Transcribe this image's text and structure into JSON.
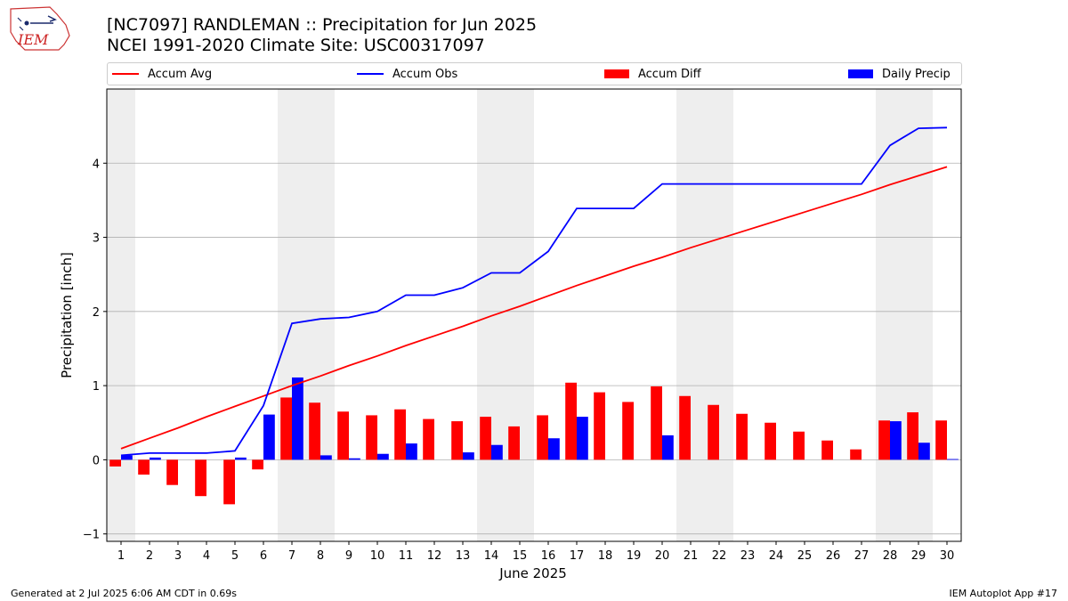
{
  "header": {
    "title": "[NC7097] RANDLEMAN :: Precipitation for Jun 2025",
    "subtitle": "NCEI 1991-2020 Climate Site: USC00317097",
    "logo_text": "IEM"
  },
  "legend": {
    "items": [
      {
        "label": "Accum Avg",
        "kind": "line",
        "color": "#ff0000"
      },
      {
        "label": "Accum Obs",
        "kind": "line",
        "color": "#0000ff"
      },
      {
        "label": "Accum Diff",
        "kind": "bar",
        "color": "#ff0000"
      },
      {
        "label": "Daily Precip",
        "kind": "bar",
        "color": "#0000ff"
      }
    ]
  },
  "footer": {
    "left": "Generated at 2 Jul 2025 6:06 AM CDT in 0.69s",
    "right": "IEM Autoplot App #17"
  },
  "chart_data": {
    "type": "bar",
    "xlabel": "June 2025",
    "ylabel": "Precipitation [inch]",
    "categories": [
      1,
      2,
      3,
      4,
      5,
      6,
      7,
      8,
      9,
      10,
      11,
      12,
      13,
      14,
      15,
      16,
      17,
      18,
      19,
      20,
      21,
      22,
      23,
      24,
      25,
      26,
      27,
      28,
      29,
      30
    ],
    "ylim": [
      -1.1,
      5.0
    ],
    "yticks": [
      -1,
      0,
      1,
      2,
      3,
      4
    ],
    "grid": true,
    "legend_position": "top",
    "weekend_shading": [
      [
        1,
        1
      ],
      [
        7,
        8
      ],
      [
        14,
        15
      ],
      [
        21,
        22
      ],
      [
        28,
        29
      ]
    ],
    "colors": {
      "avg": "#ff0000",
      "obs": "#0000ff",
      "weekend": "#eeeeee",
      "grid": "#b0b0b0"
    },
    "series": [
      {
        "name": "Accum Avg",
        "type": "line",
        "values": [
          0.15,
          0.29,
          0.43,
          0.58,
          0.72,
          0.86,
          1.0,
          1.13,
          1.27,
          1.4,
          1.54,
          1.67,
          1.8,
          1.94,
          2.07,
          2.21,
          2.35,
          2.48,
          2.61,
          2.73,
          2.86,
          2.98,
          3.1,
          3.22,
          3.34,
          3.46,
          3.58,
          3.71,
          3.83,
          3.95
        ]
      },
      {
        "name": "Accum Obs",
        "type": "line",
        "values": [
          0.06,
          0.09,
          0.09,
          0.09,
          0.12,
          0.73,
          1.84,
          1.9,
          1.92,
          2.0,
          2.22,
          2.22,
          2.32,
          2.52,
          2.52,
          2.81,
          3.39,
          3.39,
          3.39,
          3.72,
          3.72,
          3.72,
          3.72,
          3.72,
          3.72,
          3.72,
          3.72,
          4.24,
          4.47,
          4.48
        ]
      },
      {
        "name": "Accum Diff",
        "type": "bar",
        "values": [
          -0.09,
          -0.2,
          -0.34,
          -0.49,
          -0.6,
          -0.13,
          0.84,
          0.77,
          0.65,
          0.6,
          0.68,
          0.55,
          0.52,
          0.58,
          0.45,
          0.6,
          1.04,
          0.91,
          0.78,
          0.99,
          0.86,
          0.74,
          0.62,
          0.5,
          0.38,
          0.26,
          0.14,
          0.53,
          0.64,
          0.53
        ]
      },
      {
        "name": "Daily Precip",
        "type": "bar",
        "values": [
          0.06,
          0.03,
          0.0,
          0.0,
          0.03,
          0.61,
          1.11,
          0.06,
          0.02,
          0.08,
          0.22,
          0.0,
          0.1,
          0.2,
          0.0,
          0.29,
          0.58,
          0.0,
          0.0,
          0.33,
          0.0,
          0.0,
          0.0,
          0.0,
          0.0,
          0.0,
          0.0,
          0.52,
          0.23,
          0.01
        ]
      }
    ]
  }
}
